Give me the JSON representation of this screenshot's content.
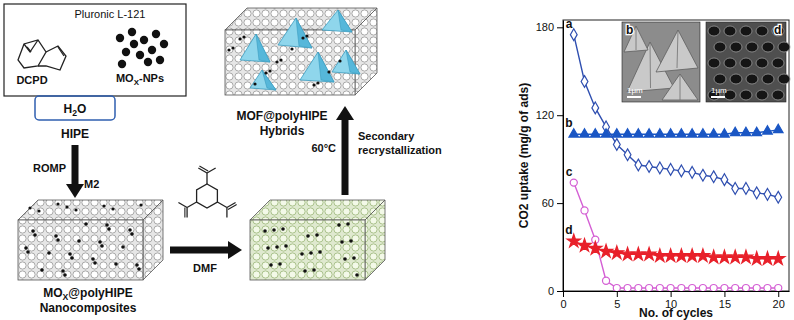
{
  "diagram": {
    "labels": [
      {
        "text": "Pluronic L-121"
      },
      {
        "text": "DCPD"
      },
      {
        "text": "MO",
        "subscript": "X",
        "text_after": "-NPs"
      },
      {
        "text": "H",
        "subscript": "2",
        "text_after": "O"
      },
      {
        "text": "HIPE"
      },
      {
        "text": "ROMP"
      },
      {
        "text": "M2"
      },
      {
        "text": "MO",
        "subscript": "X",
        "text_after": "@polyHIPE"
      },
      {
        "text": "Nanocomposites"
      },
      {
        "text": "DMF"
      },
      {
        "text": "60°C"
      },
      {
        "text": "Secondary"
      },
      {
        "text": "recrystallization"
      },
      {
        "text": "MOF@polyHIPE"
      },
      {
        "text": "Hybrids"
      }
    ]
  },
  "chart_data": {
    "type": "line",
    "x_label": "No. of cycles",
    "y_label": "CO2 uptake (mg/g of ads)",
    "x": [
      1,
      2,
      3,
      4,
      5,
      6,
      7,
      8,
      9,
      10,
      11,
      12,
      13,
      14,
      15,
      16,
      17,
      18,
      19,
      20
    ],
    "xlim": [
      0,
      21
    ],
    "xticks": [
      0,
      5,
      10,
      15,
      20
    ],
    "ylim": [
      0,
      185
    ],
    "yticks": [
      0,
      60,
      120,
      180
    ],
    "grid": false,
    "series": [
      {
        "name": "a",
        "color": "#2f4fb0",
        "marker": "diamond-open",
        "line_style": "solid",
        "values": [
          175,
          143,
          125,
          112,
          100,
          93,
          86,
          85,
          84,
          83,
          82,
          81,
          79,
          78,
          76,
          70,
          70,
          67,
          66,
          64
        ]
      },
      {
        "name": "b",
        "color": "#1a56c4",
        "marker": "triangle",
        "line_style": "solid",
        "values": [
          107,
          107,
          107,
          107,
          107,
          107,
          107,
          107,
          107,
          107,
          107,
          107,
          107,
          107,
          107,
          108,
          108,
          108,
          109,
          110
        ]
      },
      {
        "name": "c",
        "color": "#d45fd4",
        "marker": "circle-open",
        "line_style": "solid",
        "values": [
          74,
          55,
          35,
          7,
          2,
          2,
          2,
          2,
          2,
          2,
          2,
          2,
          2,
          2,
          2,
          2,
          2,
          2,
          2,
          2
        ]
      },
      {
        "name": "d",
        "color": "#e8202a",
        "marker": "star",
        "line_style": "solid",
        "values": [
          34,
          31,
          29,
          27,
          26,
          25,
          25,
          25,
          24,
          24,
          24,
          24,
          24,
          23,
          23,
          23,
          23,
          22,
          22,
          22
        ]
      }
    ],
    "insets": [
      {
        "label": "b",
        "scale_bar": "1μm"
      },
      {
        "label": "d",
        "scale_bar": "1μm"
      }
    ]
  }
}
